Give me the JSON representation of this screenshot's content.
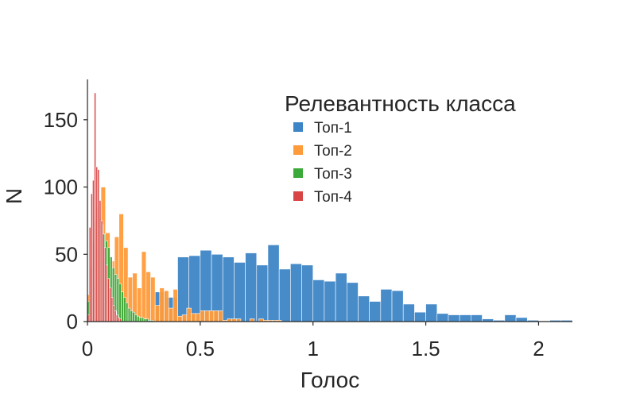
{
  "chart_data": {
    "type": "bar",
    "xlabel": "Голос",
    "ylabel": "N",
    "xlim": [
      0,
      2.15
    ],
    "ylim": [
      0,
      180
    ],
    "xticks": [
      0,
      0.5,
      1,
      1.5,
      2
    ],
    "xtick_labels": [
      "0",
      "0.5",
      "1",
      "1.5",
      "2"
    ],
    "yticks": [
      0,
      50,
      100,
      150
    ],
    "ytick_labels": [
      "0",
      "50",
      "100",
      "150"
    ],
    "grid": false,
    "legend": {
      "title": "Релевантность класса",
      "position": "top-right"
    },
    "series": [
      {
        "name": "Топ-1",
        "color": "#3d85c6",
        "bin_width": 0.05,
        "bins": [
          {
            "x0": 0.3,
            "value": 22
          },
          {
            "x0": 0.35,
            "value": 18
          },
          {
            "x0": 0.4,
            "value": 48
          },
          {
            "x0": 0.45,
            "value": 49
          },
          {
            "x0": 0.5,
            "value": 53
          },
          {
            "x0": 0.55,
            "value": 50
          },
          {
            "x0": 0.6,
            "value": 48
          },
          {
            "x0": 0.65,
            "value": 44
          },
          {
            "x0": 0.7,
            "value": 51
          },
          {
            "x0": 0.75,
            "value": 42
          },
          {
            "x0": 0.8,
            "value": 57
          },
          {
            "x0": 0.85,
            "value": 39
          },
          {
            "x0": 0.9,
            "value": 43
          },
          {
            "x0": 0.95,
            "value": 42
          },
          {
            "x0": 1.0,
            "value": 31
          },
          {
            "x0": 1.05,
            "value": 30
          },
          {
            "x0": 1.1,
            "value": 36
          },
          {
            "x0": 1.15,
            "value": 29
          },
          {
            "x0": 1.2,
            "value": 19
          },
          {
            "x0": 1.25,
            "value": 15
          },
          {
            "x0": 1.3,
            "value": 24
          },
          {
            "x0": 1.35,
            "value": 23
          },
          {
            "x0": 1.4,
            "value": 13
          },
          {
            "x0": 1.45,
            "value": 7
          },
          {
            "x0": 1.5,
            "value": 13
          },
          {
            "x0": 1.55,
            "value": 6
          },
          {
            "x0": 1.6,
            "value": 5
          },
          {
            "x0": 1.65,
            "value": 5
          },
          {
            "x0": 1.7,
            "value": 5
          },
          {
            "x0": 1.75,
            "value": 2
          },
          {
            "x0": 1.8,
            "value": 1
          },
          {
            "x0": 1.85,
            "value": 5
          },
          {
            "x0": 1.9,
            "value": 3
          },
          {
            "x0": 1.95,
            "value": 1
          },
          {
            "x0": 2.0,
            "value": 0
          },
          {
            "x0": 2.05,
            "value": 1
          },
          {
            "x0": 2.1,
            "value": 1
          }
        ]
      },
      {
        "name": "Топ-2",
        "color": "#ff9b3a",
        "bin_width": 0.02,
        "bins": [
          {
            "x0": 0.0,
            "value": 20
          },
          {
            "x0": 0.02,
            "value": 40
          },
          {
            "x0": 0.04,
            "value": 60
          },
          {
            "x0": 0.06,
            "value": 100
          },
          {
            "x0": 0.08,
            "value": 66
          },
          {
            "x0": 0.1,
            "value": 45
          },
          {
            "x0": 0.12,
            "value": 63
          },
          {
            "x0": 0.14,
            "value": 80
          },
          {
            "x0": 0.16,
            "value": 55
          },
          {
            "x0": 0.18,
            "value": 33
          },
          {
            "x0": 0.2,
            "value": 36
          },
          {
            "x0": 0.22,
            "value": 25
          },
          {
            "x0": 0.24,
            "value": 52
          },
          {
            "x0": 0.26,
            "value": 37
          },
          {
            "x0": 0.28,
            "value": 33
          },
          {
            "x0": 0.3,
            "value": 12
          },
          {
            "x0": 0.32,
            "value": 25
          },
          {
            "x0": 0.34,
            "value": 23
          },
          {
            "x0": 0.36,
            "value": 10
          },
          {
            "x0": 0.38,
            "value": 24
          },
          {
            "x0": 0.4,
            "value": 4
          },
          {
            "x0": 0.42,
            "value": 5
          },
          {
            "x0": 0.44,
            "value": 10
          },
          {
            "x0": 0.46,
            "value": 6
          },
          {
            "x0": 0.48,
            "value": 6
          },
          {
            "x0": 0.5,
            "value": 8
          },
          {
            "x0": 0.52,
            "value": 8
          },
          {
            "x0": 0.54,
            "value": 8
          },
          {
            "x0": 0.56,
            "value": 8
          },
          {
            "x0": 0.58,
            "value": 8
          },
          {
            "x0": 0.6,
            "value": 1
          },
          {
            "x0": 0.62,
            "value": 2
          },
          {
            "x0": 0.64,
            "value": 2
          },
          {
            "x0": 0.66,
            "value": 2
          },
          {
            "x0": 0.68,
            "value": 0
          },
          {
            "x0": 0.7,
            "value": 0
          },
          {
            "x0": 0.72,
            "value": 2
          },
          {
            "x0": 0.74,
            "value": 0
          },
          {
            "x0": 0.76,
            "value": 2
          },
          {
            "x0": 0.78,
            "value": 1
          },
          {
            "x0": 0.8,
            "value": 1
          },
          {
            "x0": 0.82,
            "value": 1
          },
          {
            "x0": 0.84,
            "value": 1
          }
        ]
      },
      {
        "name": "Топ-3",
        "color": "#3aaa3a",
        "bin_width": 0.01,
        "bins": [
          {
            "x0": 0.0,
            "value": 15
          },
          {
            "x0": 0.01,
            "value": 40
          },
          {
            "x0": 0.02,
            "value": 60
          },
          {
            "x0": 0.03,
            "value": 75
          },
          {
            "x0": 0.04,
            "value": 85
          },
          {
            "x0": 0.05,
            "value": 78
          },
          {
            "x0": 0.06,
            "value": 72
          },
          {
            "x0": 0.07,
            "value": 65
          },
          {
            "x0": 0.08,
            "value": 60
          },
          {
            "x0": 0.09,
            "value": 55
          },
          {
            "x0": 0.1,
            "value": 48
          },
          {
            "x0": 0.11,
            "value": 40
          },
          {
            "x0": 0.12,
            "value": 35
          },
          {
            "x0": 0.13,
            "value": 32
          },
          {
            "x0": 0.14,
            "value": 28
          },
          {
            "x0": 0.15,
            "value": 22
          },
          {
            "x0": 0.16,
            "value": 18
          },
          {
            "x0": 0.17,
            "value": 14
          },
          {
            "x0": 0.18,
            "value": 10
          },
          {
            "x0": 0.19,
            "value": 8
          },
          {
            "x0": 0.2,
            "value": 7
          },
          {
            "x0": 0.21,
            "value": 5
          },
          {
            "x0": 0.22,
            "value": 4
          },
          {
            "x0": 0.23,
            "value": 3
          },
          {
            "x0": 0.24,
            "value": 3
          },
          {
            "x0": 0.25,
            "value": 2
          },
          {
            "x0": 0.26,
            "value": 2
          },
          {
            "x0": 0.27,
            "value": 1
          },
          {
            "x0": 0.28,
            "value": 1
          }
        ]
      },
      {
        "name": "Топ-4",
        "color": "#d94545",
        "bin_width": 0.0075,
        "bins": [
          {
            "x0": 0.0,
            "value": 5
          },
          {
            "x0": 0.0075,
            "value": 70
          },
          {
            "x0": 0.015,
            "value": 95
          },
          {
            "x0": 0.0225,
            "value": 105
          },
          {
            "x0": 0.03,
            "value": 170
          },
          {
            "x0": 0.0375,
            "value": 115
          },
          {
            "x0": 0.045,
            "value": 113
          },
          {
            "x0": 0.0525,
            "value": 90
          },
          {
            "x0": 0.06,
            "value": 75
          },
          {
            "x0": 0.0675,
            "value": 65
          },
          {
            "x0": 0.075,
            "value": 55
          },
          {
            "x0": 0.0825,
            "value": 42
          },
          {
            "x0": 0.09,
            "value": 32
          },
          {
            "x0": 0.0975,
            "value": 25
          },
          {
            "x0": 0.105,
            "value": 18
          },
          {
            "x0": 0.1125,
            "value": 12
          },
          {
            "x0": 0.12,
            "value": 8
          },
          {
            "x0": 0.1275,
            "value": 5
          },
          {
            "x0": 0.135,
            "value": 3
          },
          {
            "x0": 0.1425,
            "value": 2
          }
        ]
      }
    ]
  }
}
